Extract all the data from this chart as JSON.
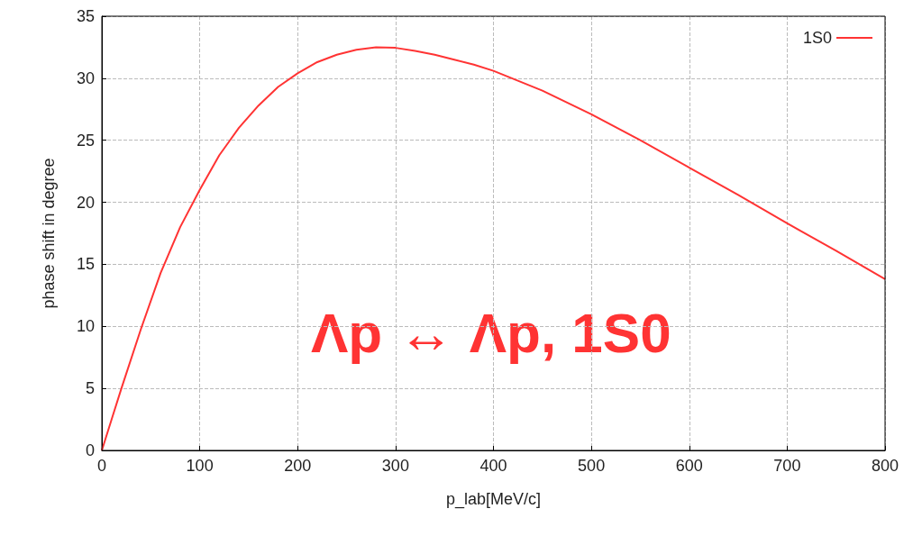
{
  "chart_data": {
    "type": "line",
    "xlabel": "p_lab[MeV/c]",
    "ylabel": "phase shift in degree",
    "annotations": [
      "Λp ↔ Λp, 1S0"
    ],
    "x": [
      0,
      10,
      20,
      40,
      60,
      80,
      100,
      120,
      140,
      160,
      180,
      200,
      220,
      240,
      260,
      280,
      300,
      320,
      340,
      360,
      380,
      400,
      450,
      500,
      550,
      600,
      650,
      700,
      750,
      800
    ],
    "series": [
      {
        "name": "1S0",
        "color": "#ff3333",
        "values": [
          0,
          2.5,
          5,
          9.8,
          14.3,
          18,
          21,
          23.8,
          26,
          27.8,
          29.3,
          30.4,
          31.3,
          31.9,
          32.3,
          32.5,
          32.45,
          32.2,
          31.9,
          31.5,
          31.1,
          30.6,
          29,
          27.1,
          25,
          22.8,
          20.6,
          18.3,
          16.1,
          13.8
        ]
      }
    ],
    "xlim": [
      0,
      800
    ],
    "xticks": [
      0,
      100,
      200,
      300,
      400,
      500,
      600,
      700,
      800
    ],
    "ylim": [
      0,
      35
    ],
    "yticks": [
      0,
      5,
      10,
      15,
      20,
      25,
      30,
      35
    ],
    "grid": true,
    "legend": "top right",
    "marker": "none",
    "line_style": "solid"
  }
}
